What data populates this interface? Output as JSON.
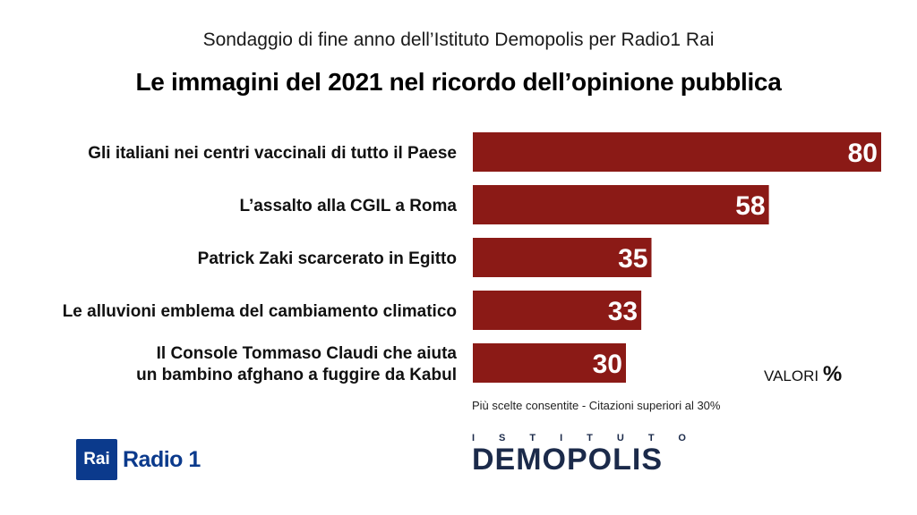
{
  "header": {
    "subtitle": "Sondaggio di fine anno dell’Istituto Demopolis per Radio1 Rai",
    "title": "Le immagini del 2021 nel ricordo dell’opinione pubblica"
  },
  "chart_data": {
    "type": "bar",
    "orientation": "horizontal",
    "title": "Le immagini del 2021 nel ricordo dell’opinione pubblica",
    "categories": [
      [
        "Gli italiani nei centri vaccinali di tutto il Paese"
      ],
      [
        "L’assalto alla CGIL a Roma"
      ],
      [
        "Patrick Zaki scarcerato in Egitto"
      ],
      [
        "Le alluvioni emblema del cambiamento climatico"
      ],
      [
        "Il Console Tommaso Claudi che aiuta",
        "un bambino afghano a fuggire da Kabul"
      ]
    ],
    "values": [
      80,
      58,
      35,
      33,
      30
    ],
    "xlim": [
      0,
      80
    ],
    "grid": false,
    "bar_color": "#8b1a16"
  },
  "units": {
    "prefix": "VALORI",
    "symbol": "%"
  },
  "note": "Più scelte consentite - Citazioni superiori al 30%",
  "logos": {
    "rai": "Rai",
    "radio": "Radio 1",
    "istituto": "ISTITUTO",
    "demopolis": "DEMOPOLIS"
  }
}
